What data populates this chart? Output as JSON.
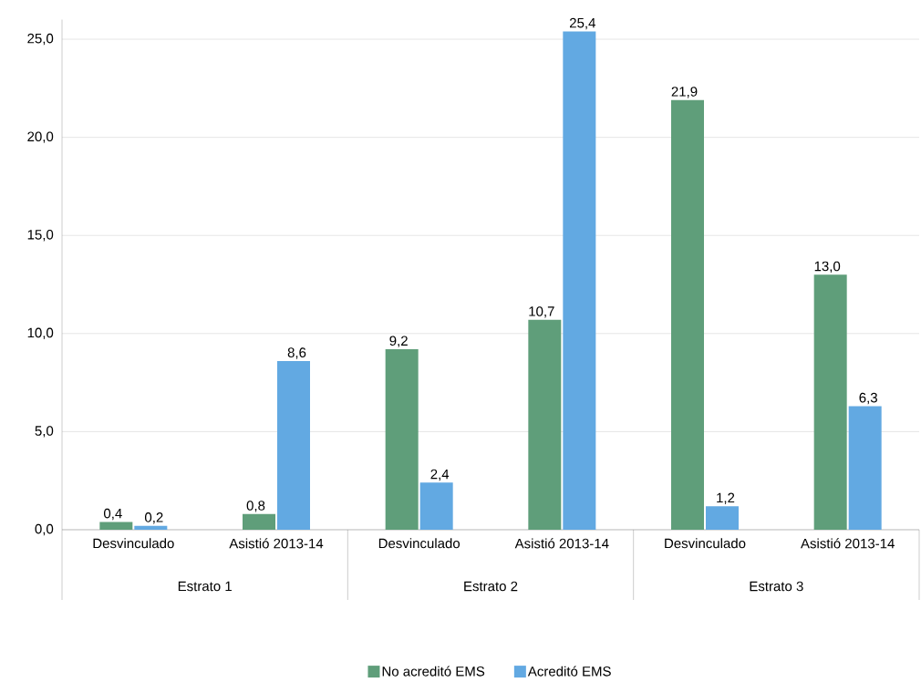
{
  "chart_data": {
    "type": "bar",
    "categories": [
      "Desvinculado",
      "Asistió 2013-14",
      "Desvinculado",
      "Asistió 2013-14",
      "Desvinculado",
      "Asistió 2013-14"
    ],
    "series": [
      {
        "name": "No acreditó EMS",
        "color": "#5f9e7a",
        "values": [
          0.4,
          0.8,
          9.2,
          10.7,
          21.9,
          13.0
        ],
        "value_labels": [
          "0,4",
          "0,8",
          "9,2",
          "10,7",
          "21,9",
          "13,0"
        ]
      },
      {
        "name": "Acreditó EMS",
        "color": "#62a9e2",
        "values": [
          0.2,
          8.6,
          2.4,
          25.4,
          1.2,
          6.3
        ],
        "value_labels": [
          "0,2",
          "8,6",
          "2,4",
          "25,4",
          "1,2",
          "6,3"
        ]
      }
    ],
    "annotations": [
      "Estrato 1",
      "Estrato 2",
      "Estrato 3"
    ],
    "ylim": [
      0,
      26
    ],
    "yticks": [
      {
        "value": 0,
        "label": "0,0"
      },
      {
        "value": 5,
        "label": "5,0"
      },
      {
        "value": 10,
        "label": "10,0"
      },
      {
        "value": 15,
        "label": "15,0"
      },
      {
        "value": 20,
        "label": "20,0"
      },
      {
        "value": 25,
        "label": "25,0"
      }
    ],
    "grid": "y",
    "legend": "bottom"
  }
}
